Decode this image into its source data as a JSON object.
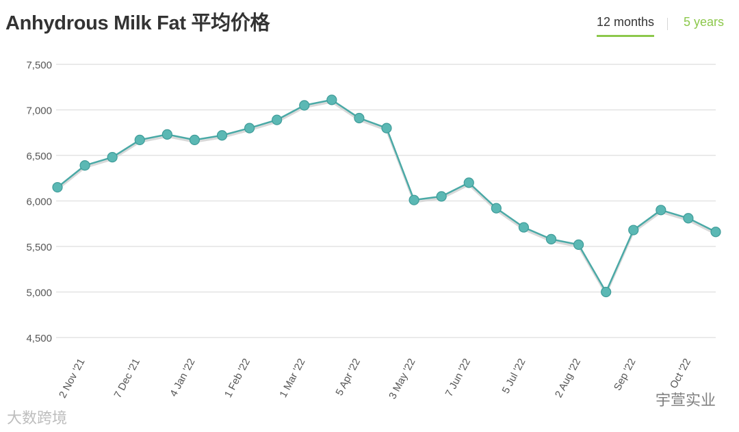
{
  "title": "Anhydrous Milk Fat 平均价格",
  "tabs": {
    "active": "12 months",
    "inactive": "5 years"
  },
  "colors": {
    "line": "#4aa9a6",
    "marker": "#5bb8b4",
    "grid": "#e3e3e3",
    "accent": "#8cc84b"
  },
  "watermarks": {
    "left": "大数跨境",
    "right": "宇萱实业"
  },
  "chart_data": {
    "type": "line",
    "ylim": [
      4500,
      7500
    ],
    "yticks": [
      4500,
      5000,
      5500,
      6000,
      6500,
      7000,
      7500
    ],
    "ytick_labels": [
      "4,500",
      "5,000",
      "5,500",
      "6,000",
      "6,500",
      "7,000",
      "7,500"
    ],
    "xtick_labels": [
      "2 Nov '21",
      "7 Dec '21",
      "4 Jan '22",
      "1 Feb '22",
      "1 Mar '22",
      "5 Apr '22",
      "3 May '22",
      "7 Jun '22",
      "5 Jul '22",
      "2 Aug '22",
      "Sep '22",
      "Oct '22"
    ],
    "values": [
      6150,
      6390,
      6480,
      6670,
      6730,
      6670,
      6720,
      6800,
      6890,
      7050,
      7110,
      6910,
      6800,
      6010,
      6050,
      6200,
      5920,
      5710,
      5580,
      5520,
      5000,
      5680,
      5900,
      5810,
      5660
    ],
    "grid": true
  }
}
